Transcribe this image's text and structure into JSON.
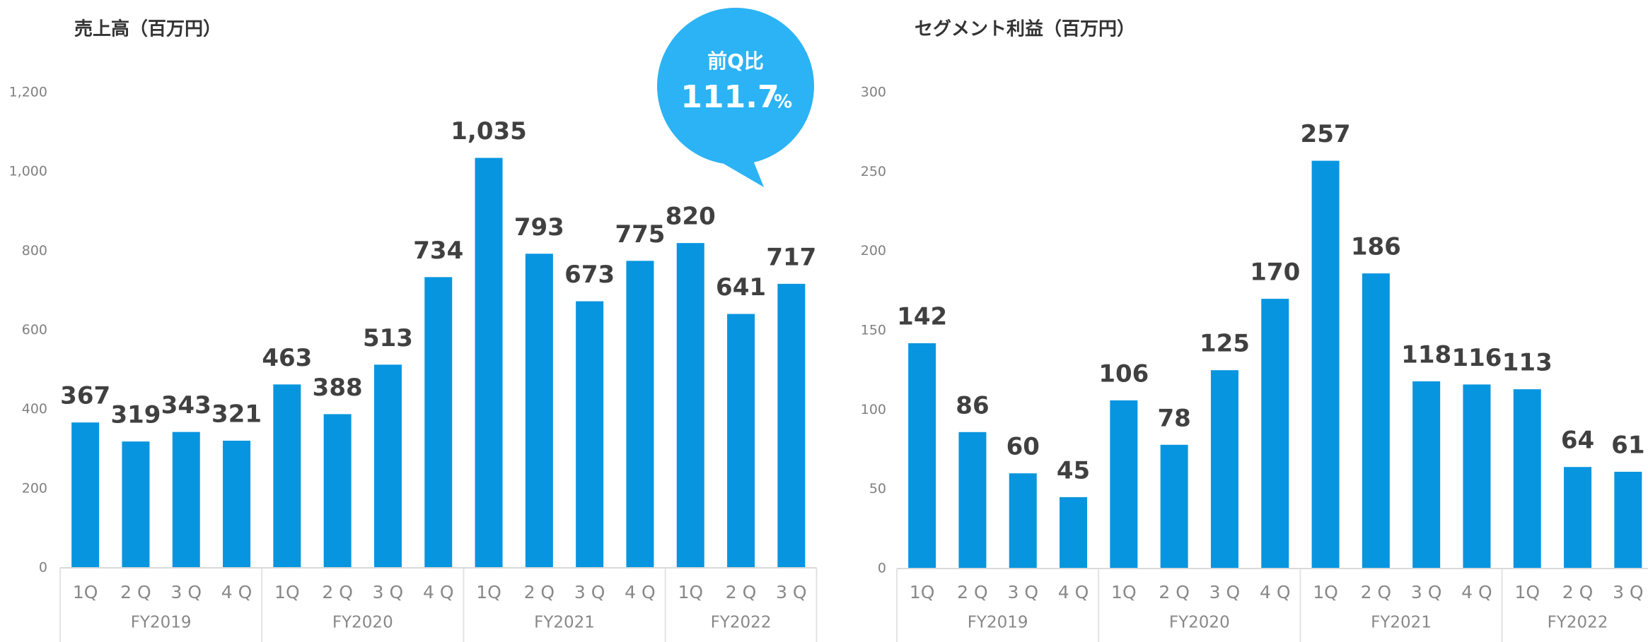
{
  "chart_data": [
    {
      "type": "bar",
      "title": "売上高（百万円）",
      "color": "#0895e0",
      "groups": [
        {
          "name": "FY2019",
          "categories": [
            "1Q",
            "2 Q",
            "3 Q",
            "4 Q"
          ],
          "values": [
            367,
            319,
            343,
            321
          ],
          "value_labels": [
            "367",
            "319",
            "343",
            "321"
          ]
        },
        {
          "name": "FY2020",
          "categories": [
            "1Q",
            "2 Q",
            "3 Q",
            "4 Q"
          ],
          "values": [
            463,
            388,
            513,
            734
          ],
          "value_labels": [
            "463",
            "388",
            "513",
            "734"
          ]
        },
        {
          "name": "FY2021",
          "categories": [
            "1Q",
            "2 Q",
            "3 Q",
            "4 Q"
          ],
          "values": [
            1035,
            793,
            673,
            775
          ],
          "value_labels": [
            "1,035",
            "793",
            "673",
            "775"
          ]
        },
        {
          "name": "FY2022",
          "categories": [
            "1Q",
            "2 Q",
            "3 Q"
          ],
          "values": [
            820,
            641,
            717
          ],
          "value_labels": [
            "820",
            "641",
            "717"
          ]
        }
      ],
      "ylim": [
        0,
        1200
      ],
      "yticks": [
        0,
        200,
        400,
        600,
        800,
        {
          "value": 1000,
          "label": "1,000"
        },
        {
          "value": 1200,
          "label": "1,200"
        }
      ],
      "grid": false,
      "callout": {
        "title": "前Q比",
        "value": 111.7,
        "unit": "%",
        "color": "#2bb3f5"
      }
    },
    {
      "type": "bar",
      "title": "セグメント利益（百万円）",
      "color": "#0895e0",
      "groups": [
        {
          "name": "FY2019",
          "categories": [
            "1Q",
            "2 Q",
            "3 Q",
            "4 Q"
          ],
          "values": [
            142,
            86,
            60,
            45
          ]
        },
        {
          "name": "FY2020",
          "categories": [
            "1Q",
            "2 Q",
            "3 Q",
            "4 Q"
          ],
          "values": [
            106,
            78,
            125,
            170
          ]
        },
        {
          "name": "FY2021",
          "categories": [
            "1Q",
            "2 Q",
            "3 Q",
            "4 Q"
          ],
          "values": [
            257,
            186,
            118,
            116
          ]
        },
        {
          "name": "FY2022",
          "categories": [
            "1Q",
            "2 Q",
            "3 Q"
          ],
          "values": [
            113,
            64,
            61
          ]
        }
      ],
      "ylim": [
        0,
        300
      ],
      "yticks": [
        0,
        50,
        100,
        150,
        200,
        250,
        300
      ],
      "grid": false
    }
  ]
}
